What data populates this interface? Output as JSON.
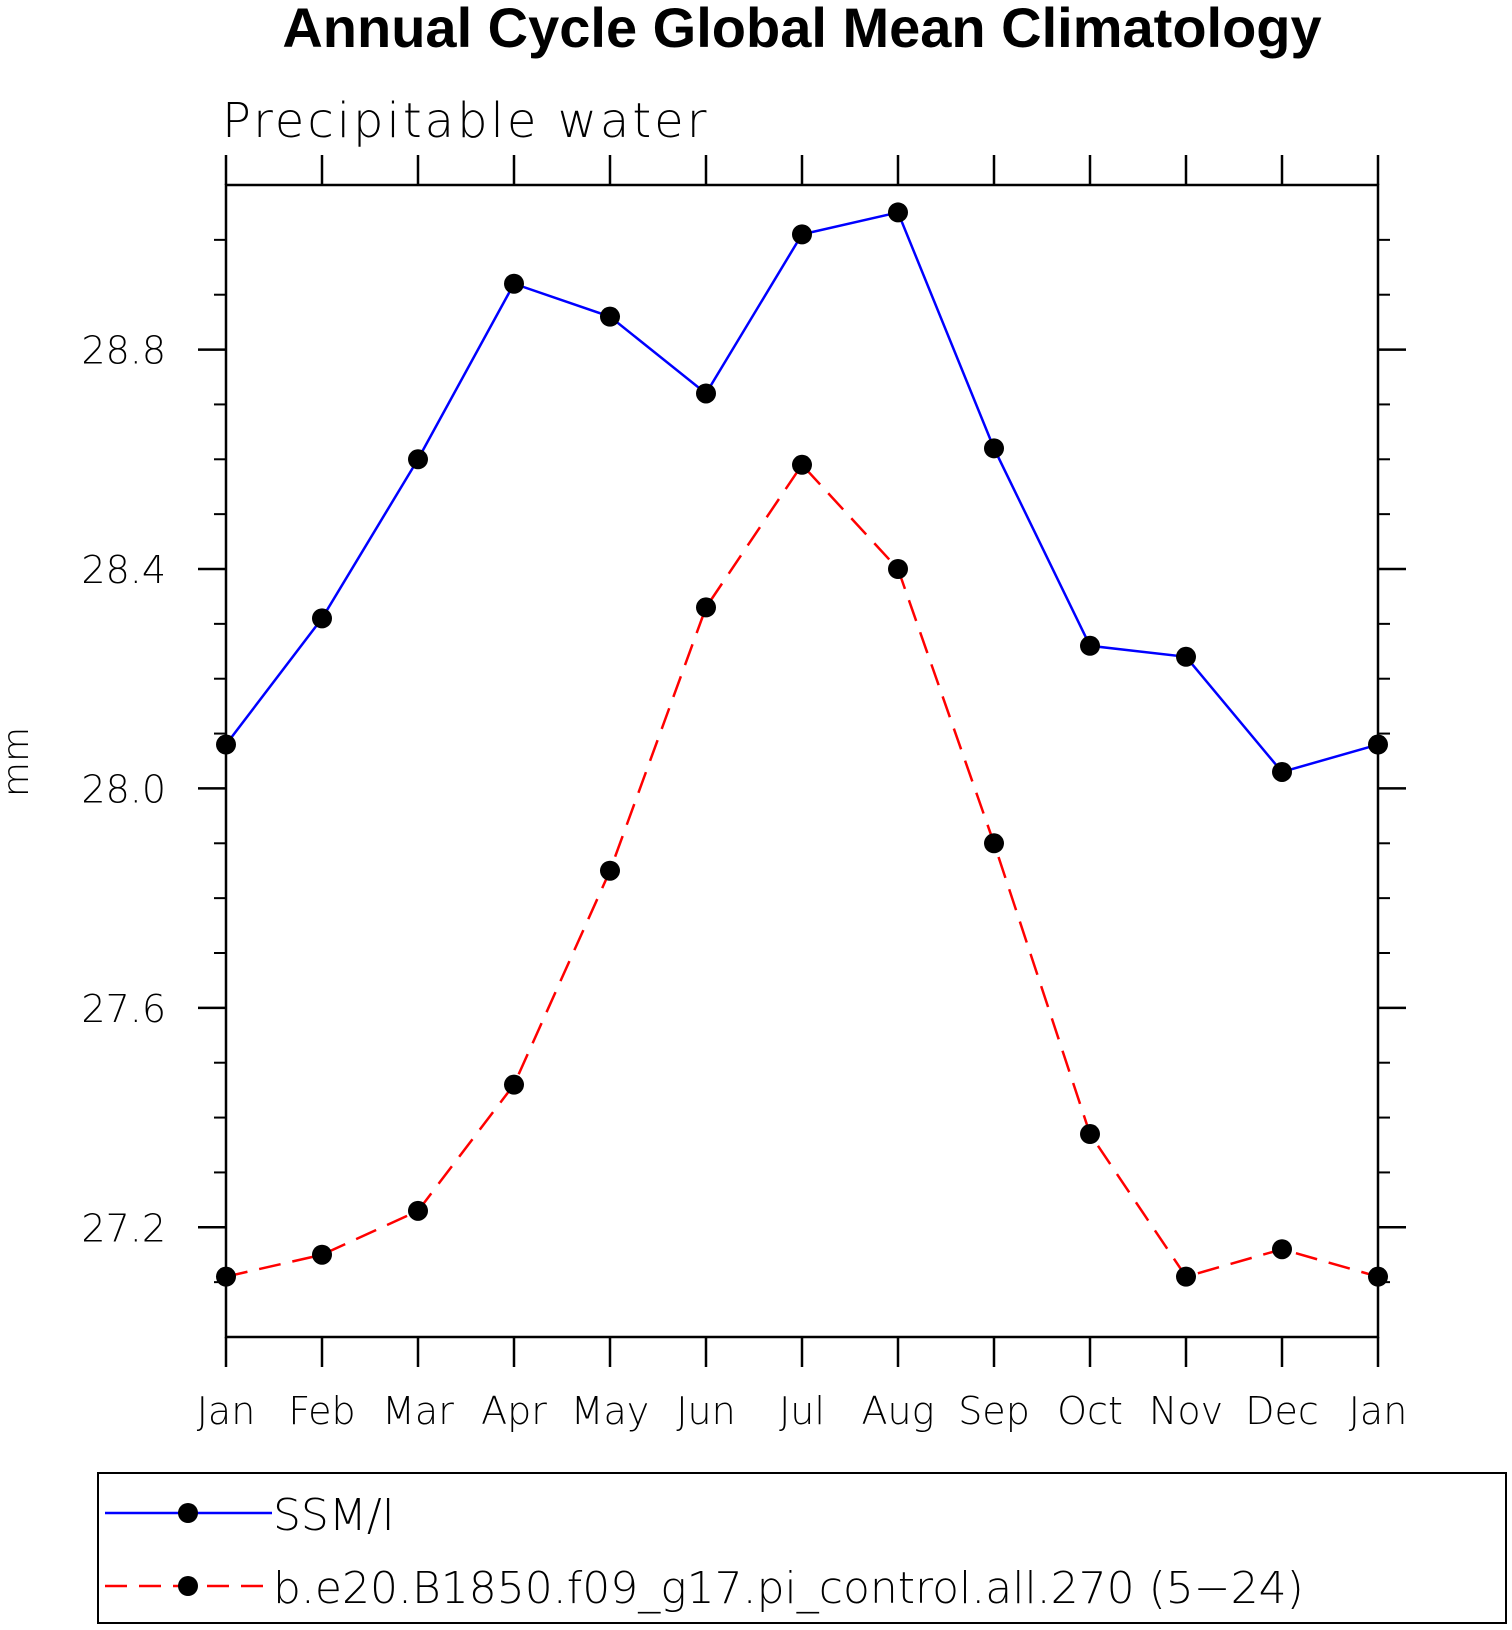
{
  "chart_data": {
    "type": "line",
    "title": "Annual Cycle Global Mean Climatology",
    "subtitle": "Precipitable water",
    "xlabel": "",
    "ylabel": "mm",
    "categories": [
      "Jan",
      "Feb",
      "Mar",
      "Apr",
      "May",
      "Jun",
      "Jul",
      "Aug",
      "Sep",
      "Oct",
      "Nov",
      "Dec",
      "Jan"
    ],
    "ylim": [
      27.0,
      29.1
    ],
    "yticks": [
      "27.2",
      "27.6",
      "28.0",
      "28.4",
      "28.8"
    ],
    "legend_position": "bottom",
    "series": [
      {
        "name": "SSM/I",
        "color": "#0000ff",
        "style": "solid",
        "values": [
          28.08,
          28.31,
          28.6,
          28.92,
          28.86,
          28.72,
          29.01,
          29.05,
          28.62,
          28.26,
          28.24,
          28.03,
          28.08
        ]
      },
      {
        "name": "b.e20.B1850.f09_g17.pi_control.all.270 (5−24)",
        "color": "#ff0000",
        "style": "dashed",
        "values": [
          27.11,
          27.15,
          27.23,
          27.46,
          27.85,
          28.33,
          28.59,
          28.4,
          27.9,
          27.37,
          27.11,
          27.16,
          27.11
        ]
      }
    ]
  }
}
